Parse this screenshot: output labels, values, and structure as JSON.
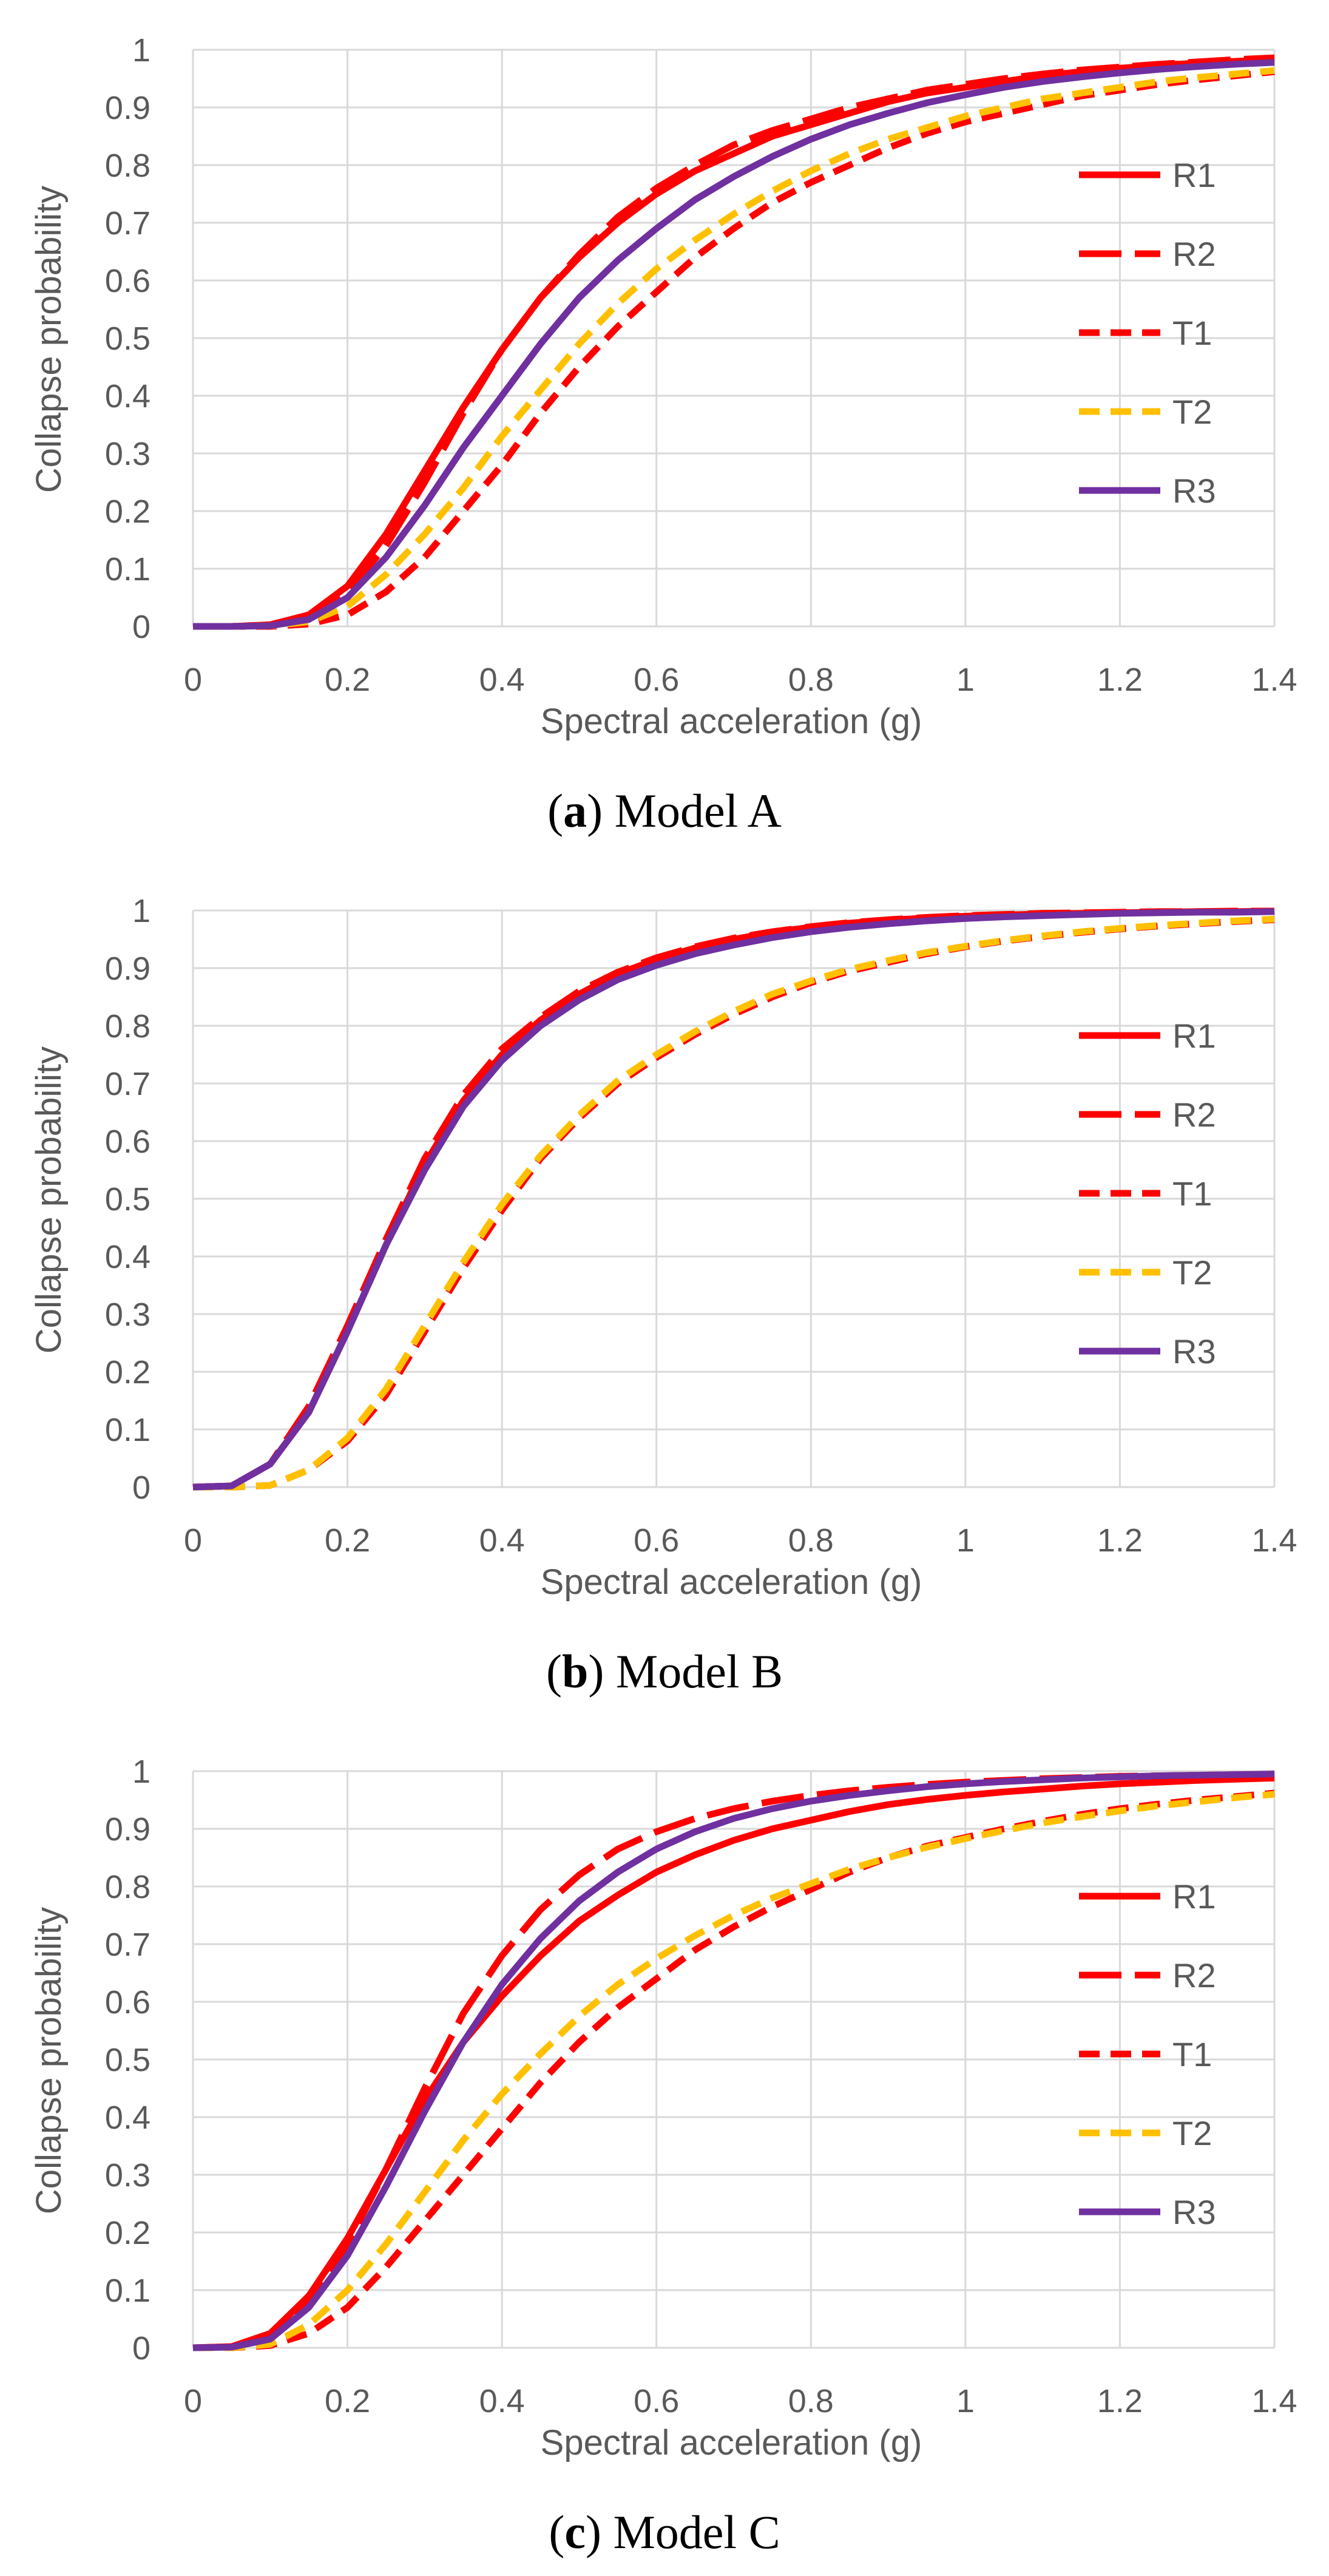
{
  "chart_data": [
    {
      "type": "line",
      "caption": {
        "letter": "a",
        "text": "Model A"
      },
      "xlabel": "Spectral acceleration (g)",
      "ylabel": "Collapse probability",
      "xlim": [
        0,
        1.4
      ],
      "ylim": [
        0,
        1
      ],
      "xticks": [
        "0",
        "0.2",
        "0.4",
        "0.6",
        "0.8",
        "1",
        "1.2",
        "1.4"
      ],
      "yticks": [
        "0",
        "0.1",
        "0.2",
        "0.3",
        "0.4",
        "0.5",
        "0.6",
        "0.7",
        "0.8",
        "0.9",
        "1"
      ],
      "grid": true,
      "legend_position": "right",
      "x": [
        0,
        0.05,
        0.1,
        0.15,
        0.2,
        0.25,
        0.3,
        0.35,
        0.4,
        0.45,
        0.5,
        0.55,
        0.6,
        0.65,
        0.7,
        0.75,
        0.8,
        0.85,
        0.9,
        0.95,
        1.0,
        1.05,
        1.1,
        1.15,
        1.2,
        1.25,
        1.3,
        1.35,
        1.4
      ],
      "series": [
        {
          "name": "R1",
          "color": "#ff0000",
          "dash": "solid",
          "values": [
            0,
            0,
            0.003,
            0.02,
            0.07,
            0.16,
            0.27,
            0.38,
            0.48,
            0.57,
            0.64,
            0.7,
            0.75,
            0.79,
            0.82,
            0.85,
            0.87,
            0.89,
            0.91,
            0.925,
            0.935,
            0.945,
            0.955,
            0.962,
            0.968,
            0.973,
            0.977,
            0.98,
            0.983
          ]
        },
        {
          "name": "R2",
          "color": "#ff0000",
          "dash": "long",
          "values": [
            0,
            0,
            0.002,
            0.015,
            0.06,
            0.14,
            0.25,
            0.37,
            0.48,
            0.57,
            0.645,
            0.71,
            0.76,
            0.8,
            0.835,
            0.86,
            0.88,
            0.9,
            0.915,
            0.93,
            0.94,
            0.95,
            0.958,
            0.965,
            0.97,
            0.975,
            0.979,
            0.983,
            0.986
          ]
        },
        {
          "name": "T1",
          "color": "#ff0000",
          "dash": "short",
          "values": [
            0,
            0,
            0,
            0.004,
            0.02,
            0.06,
            0.12,
            0.2,
            0.28,
            0.37,
            0.45,
            0.52,
            0.58,
            0.64,
            0.69,
            0.735,
            0.77,
            0.8,
            0.83,
            0.855,
            0.875,
            0.89,
            0.905,
            0.92,
            0.93,
            0.94,
            0.948,
            0.955,
            0.962
          ]
        },
        {
          "name": "T2",
          "color": "#ffc000",
          "dash": "short",
          "values": [
            0,
            0,
            0.001,
            0.008,
            0.035,
            0.09,
            0.16,
            0.24,
            0.33,
            0.41,
            0.49,
            0.56,
            0.62,
            0.67,
            0.715,
            0.755,
            0.79,
            0.82,
            0.845,
            0.865,
            0.885,
            0.9,
            0.915,
            0.925,
            0.935,
            0.945,
            0.952,
            0.958,
            0.964
          ]
        },
        {
          "name": "R3",
          "color": "#7030a0",
          "dash": "solid",
          "values": [
            0,
            0,
            0.001,
            0.012,
            0.05,
            0.12,
            0.21,
            0.31,
            0.4,
            0.49,
            0.57,
            0.635,
            0.69,
            0.74,
            0.78,
            0.815,
            0.845,
            0.87,
            0.89,
            0.908,
            0.922,
            0.935,
            0.945,
            0.953,
            0.96,
            0.966,
            0.971,
            0.975,
            0.978
          ]
        }
      ]
    },
    {
      "type": "line",
      "caption": {
        "letter": "b",
        "text": "Model B"
      },
      "xlabel": "Spectral acceleration (g)",
      "ylabel": "Collapse probability",
      "xlim": [
        0,
        1.4
      ],
      "ylim": [
        0,
        1
      ],
      "xticks": [
        "0",
        "0.2",
        "0.4",
        "0.6",
        "0.8",
        "1",
        "1.2",
        "1.4"
      ],
      "yticks": [
        "0",
        "0.1",
        "0.2",
        "0.3",
        "0.4",
        "0.5",
        "0.6",
        "0.7",
        "0.8",
        "0.9",
        "1"
      ],
      "grid": true,
      "legend_position": "right",
      "x": [
        0,
        0.05,
        0.1,
        0.15,
        0.2,
        0.25,
        0.3,
        0.35,
        0.4,
        0.45,
        0.5,
        0.55,
        0.6,
        0.65,
        0.7,
        0.75,
        0.8,
        0.85,
        0.9,
        0.95,
        1.0,
        1.05,
        1.1,
        1.15,
        1.2,
        1.25,
        1.3,
        1.35,
        1.4
      ],
      "series": [
        {
          "name": "R1",
          "color": "#ff0000",
          "dash": "solid",
          "values": [
            0,
            0.002,
            0.04,
            0.13,
            0.27,
            0.42,
            0.56,
            0.67,
            0.75,
            0.81,
            0.855,
            0.89,
            0.915,
            0.935,
            0.95,
            0.962,
            0.971,
            0.978,
            0.983,
            0.987,
            0.99,
            0.992,
            0.994,
            0.995,
            0.996,
            0.997,
            0.998,
            0.998,
            0.999
          ]
        },
        {
          "name": "R2",
          "color": "#ff0000",
          "dash": "long",
          "values": [
            0,
            0.002,
            0.04,
            0.14,
            0.28,
            0.43,
            0.57,
            0.68,
            0.76,
            0.815,
            0.86,
            0.893,
            0.918,
            0.937,
            0.952,
            0.963,
            0.972,
            0.979,
            0.984,
            0.988,
            0.991,
            0.993,
            0.995,
            0.996,
            0.997,
            0.998,
            0.998,
            0.999,
            0.999
          ]
        },
        {
          "name": "T1",
          "color": "#ff0000",
          "dash": "short",
          "values": [
            0,
            0,
            0.003,
            0.03,
            0.08,
            0.16,
            0.27,
            0.38,
            0.48,
            0.57,
            0.64,
            0.7,
            0.745,
            0.785,
            0.82,
            0.85,
            0.875,
            0.895,
            0.91,
            0.925,
            0.937,
            0.947,
            0.955,
            0.962,
            0.968,
            0.973,
            0.977,
            0.981,
            0.984
          ]
        },
        {
          "name": "T2",
          "color": "#ffc000",
          "dash": "short",
          "values": [
            0,
            0,
            0.003,
            0.03,
            0.085,
            0.17,
            0.28,
            0.39,
            0.49,
            0.575,
            0.645,
            0.705,
            0.75,
            0.79,
            0.825,
            0.855,
            0.878,
            0.898,
            0.913,
            0.927,
            0.938,
            0.948,
            0.956,
            0.963,
            0.969,
            0.974,
            0.978,
            0.982,
            0.985
          ]
        },
        {
          "name": "R3",
          "color": "#7030a0",
          "dash": "solid",
          "values": [
            0,
            0.002,
            0.04,
            0.13,
            0.27,
            0.42,
            0.55,
            0.66,
            0.74,
            0.8,
            0.845,
            0.88,
            0.905,
            0.925,
            0.94,
            0.953,
            0.963,
            0.971,
            0.977,
            0.982,
            0.986,
            0.989,
            0.991,
            0.993,
            0.995,
            0.996,
            0.997,
            0.997,
            0.998
          ]
        }
      ]
    },
    {
      "type": "line",
      "caption": {
        "letter": "c",
        "text": "Model C"
      },
      "xlabel": "Spectral acceleration (g)",
      "ylabel": "Collapse probability",
      "xlim": [
        0,
        1.4
      ],
      "ylim": [
        0,
        1
      ],
      "xticks": [
        "0",
        "0.2",
        "0.4",
        "0.6",
        "0.8",
        "1",
        "1.2",
        "1.4"
      ],
      "yticks": [
        "0",
        "0.1",
        "0.2",
        "0.3",
        "0.4",
        "0.5",
        "0.6",
        "0.7",
        "0.8",
        "0.9",
        "1"
      ],
      "grid": true,
      "legend_position": "right",
      "x": [
        0,
        0.05,
        0.1,
        0.15,
        0.2,
        0.25,
        0.3,
        0.35,
        0.4,
        0.45,
        0.5,
        0.55,
        0.6,
        0.65,
        0.7,
        0.75,
        0.8,
        0.85,
        0.9,
        0.95,
        1.0,
        1.05,
        1.1,
        1.15,
        1.2,
        1.25,
        1.3,
        1.35,
        1.4
      ],
      "series": [
        {
          "name": "R1",
          "color": "#ff0000",
          "dash": "solid",
          "values": [
            0,
            0.002,
            0.025,
            0.09,
            0.19,
            0.31,
            0.43,
            0.53,
            0.61,
            0.68,
            0.74,
            0.785,
            0.825,
            0.855,
            0.88,
            0.9,
            0.915,
            0.93,
            0.942,
            0.951,
            0.958,
            0.964,
            0.969,
            0.974,
            0.978,
            0.981,
            0.984,
            0.986,
            0.988
          ]
        },
        {
          "name": "R2",
          "color": "#ff0000",
          "dash": "long",
          "values": [
            0,
            0.002,
            0.02,
            0.08,
            0.18,
            0.31,
            0.45,
            0.58,
            0.68,
            0.76,
            0.82,
            0.865,
            0.895,
            0.918,
            0.935,
            0.948,
            0.958,
            0.966,
            0.972,
            0.977,
            0.981,
            0.984,
            0.987,
            0.989,
            0.991,
            0.992,
            0.993,
            0.994,
            0.995
          ]
        },
        {
          "name": "T1",
          "color": "#ff0000",
          "dash": "short",
          "values": [
            0,
            0,
            0.004,
            0.025,
            0.07,
            0.14,
            0.22,
            0.3,
            0.38,
            0.46,
            0.53,
            0.59,
            0.64,
            0.69,
            0.73,
            0.765,
            0.795,
            0.825,
            0.85,
            0.87,
            0.885,
            0.9,
            0.913,
            0.925,
            0.935,
            0.943,
            0.95,
            0.956,
            0.962
          ]
        },
        {
          "name": "T2",
          "color": "#ffc000",
          "dash": "short",
          "values": [
            0,
            0,
            0.006,
            0.04,
            0.1,
            0.18,
            0.27,
            0.36,
            0.44,
            0.51,
            0.575,
            0.63,
            0.675,
            0.715,
            0.75,
            0.78,
            0.805,
            0.83,
            0.85,
            0.868,
            0.883,
            0.897,
            0.91,
            0.921,
            0.931,
            0.94,
            0.947,
            0.954,
            0.96
          ]
        },
        {
          "name": "R3",
          "color": "#7030a0",
          "dash": "solid",
          "values": [
            0,
            0.001,
            0.015,
            0.07,
            0.16,
            0.28,
            0.41,
            0.53,
            0.63,
            0.71,
            0.775,
            0.825,
            0.865,
            0.895,
            0.918,
            0.935,
            0.948,
            0.958,
            0.966,
            0.973,
            0.978,
            0.982,
            0.985,
            0.988,
            0.99,
            0.992,
            0.993,
            0.994,
            0.995
          ]
        }
      ]
    }
  ]
}
